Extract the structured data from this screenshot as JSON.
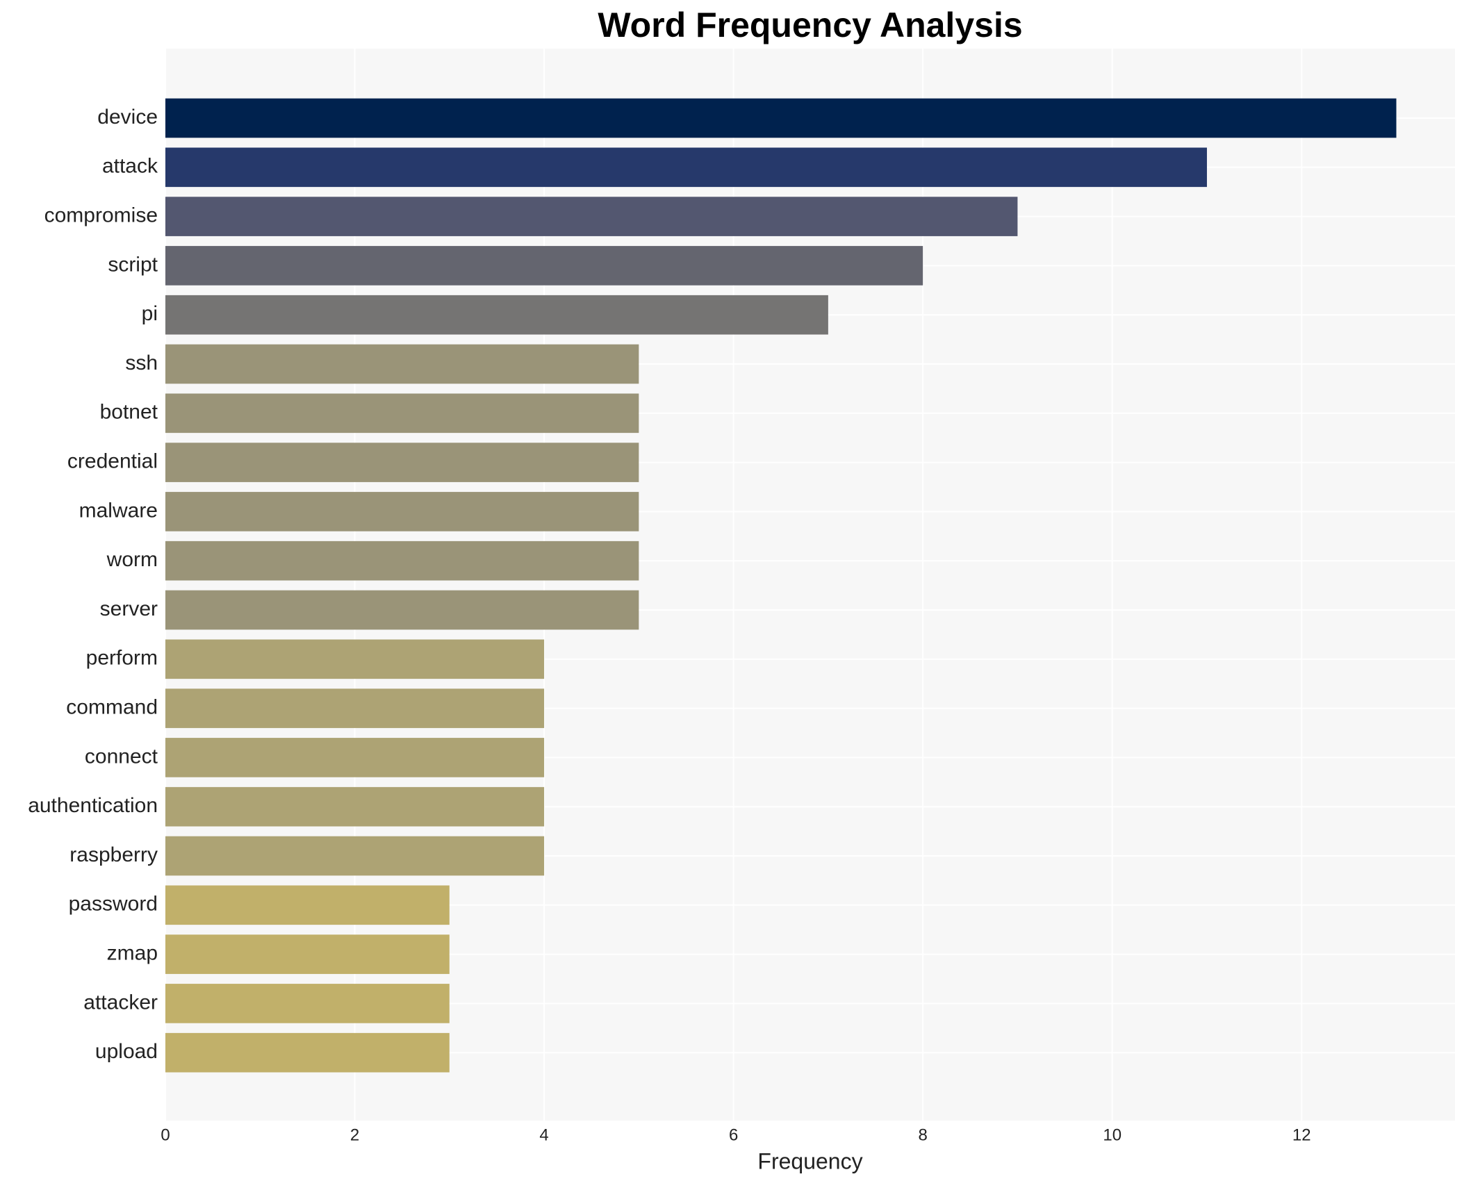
{
  "chart_data": {
    "type": "barh",
    "title": "Word Frequency Analysis",
    "x_label": "Frequency",
    "categories": [
      "device",
      "attack",
      "compromise",
      "script",
      "pi",
      "ssh",
      "botnet",
      "credential",
      "malware",
      "worm",
      "server",
      "perform",
      "command",
      "connect",
      "authentication",
      "raspberry",
      "password",
      "zmap",
      "attacker",
      "upload"
    ],
    "values": [
      13,
      11,
      9,
      8,
      7,
      5,
      5,
      5,
      5,
      5,
      5,
      4,
      4,
      4,
      4,
      4,
      3,
      3,
      3,
      3
    ],
    "colors": [
      "#00224e",
      "#26396b",
      "#535770",
      "#64656f",
      "#757473",
      "#9a9478",
      "#9a9478",
      "#9a9478",
      "#9a9478",
      "#9a9478",
      "#9a9478",
      "#ada374",
      "#ada374",
      "#ada374",
      "#ada374",
      "#ada374",
      "#c1b06a",
      "#c1b06a",
      "#c1b06a",
      "#c1b06a"
    ],
    "xlim": [
      0,
      13.62
    ],
    "xticks": [
      0,
      2,
      4,
      6,
      8,
      10,
      12
    ],
    "grid": true
  }
}
